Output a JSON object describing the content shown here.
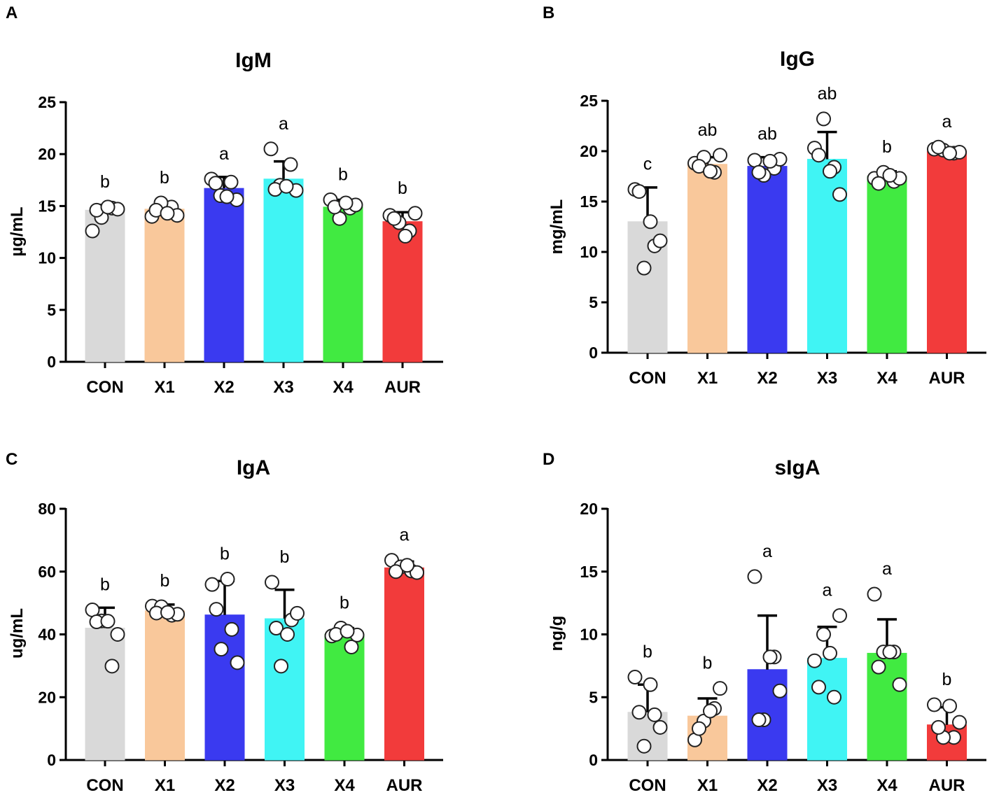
{
  "chart_data": [
    {
      "panel": "A",
      "type": "bar",
      "title": "IgM",
      "xlabel": "",
      "ylabel": "µg/mL",
      "ylim": [
        0,
        25
      ],
      "yticks": [
        "0",
        "5",
        "10",
        "15",
        "20",
        "25"
      ],
      "categories": [
        "CON",
        "X1",
        "X2",
        "X3",
        "X4",
        "AUR"
      ],
      "values": [
        14.6,
        14.7,
        16.7,
        17.6,
        14.9,
        13.5
      ],
      "error": [
        0.5,
        0.7,
        1.1,
        1.7,
        0.7,
        0.9
      ],
      "letters": [
        "b",
        "b",
        "a",
        "a",
        "b",
        "b"
      ],
      "points": [
        [
          12.6,
          14.8,
          13.9,
          14.7,
          14.6,
          14.9
        ],
        [
          14.0,
          14.9,
          15.3,
          14.1,
          14.6,
          14.3
        ],
        [
          17.6,
          17.3,
          16.0,
          15.6,
          17.2,
          15.9
        ],
        [
          20.5,
          19.0,
          17.0,
          16.5,
          16.6,
          16.9
        ],
        [
          15.6,
          14.8,
          13.8,
          15.1,
          14.9,
          15.3
        ],
        [
          14.1,
          12.6,
          13.4,
          14.3,
          13.8,
          12.1
        ]
      ],
      "bar_colors": [
        "#d9d9d9",
        "#f9c89b",
        "#3a3af0",
        "#40f4f4",
        "#41ea41",
        "#f23b3b"
      ]
    },
    {
      "panel": "B",
      "type": "bar",
      "title": "IgG",
      "xlabel": "",
      "ylabel": "mg/mL",
      "ylim": [
        0,
        25
      ],
      "yticks": [
        "0",
        "5",
        "10",
        "15",
        "20",
        "25"
      ],
      "categories": [
        "CON",
        "X1",
        "X2",
        "X3",
        "X4",
        "AUR"
      ],
      "values": [
        13.0,
        18.7,
        18.5,
        19.2,
        17.5,
        20.0
      ],
      "error": [
        3.4,
        0.7,
        0.9,
        2.7,
        0.5,
        0.3
      ],
      "letters": [
        "c",
        "ab",
        "ab",
        "ab",
        "b",
        "a"
      ],
      "points": [
        [
          16.2,
          10.6,
          8.4,
          11.1,
          16.0,
          13.0
        ],
        [
          18.8,
          17.9,
          19.4,
          19.6,
          18.5,
          18.0
        ],
        [
          19.1,
          18.3,
          17.6,
          19.2,
          17.9,
          19.0
        ],
        [
          20.3,
          18.4,
          23.2,
          15.7,
          19.6,
          18.0
        ],
        [
          17.3,
          17.0,
          17.9,
          17.3,
          16.8,
          17.6
        ],
        [
          20.2,
          19.8,
          20.1,
          19.9,
          20.4,
          19.8
        ]
      ],
      "bar_colors": [
        "#d9d9d9",
        "#f9c89b",
        "#3a3af0",
        "#40f4f4",
        "#41ea41",
        "#f23b3b"
      ]
    },
    {
      "panel": "C",
      "type": "bar",
      "title": "IgA",
      "xlabel": "",
      "ylabel": "ug/mL",
      "ylim": [
        0,
        80
      ],
      "yticks": [
        "0",
        "20",
        "40",
        "60",
        "80"
      ],
      "categories": [
        "CON",
        "X1",
        "X2",
        "X3",
        "X4",
        "AUR"
      ],
      "values": [
        42.0,
        47.5,
        46.2,
        45.0,
        40.0,
        61.2
      ],
      "error": [
        6.5,
        2.0,
        10.8,
        9.2,
        2.0,
        2.0
      ],
      "letters": [
        "b",
        "b",
        "b",
        "b",
        "b",
        "a"
      ],
      "points": [
        [
          47.8,
          29.9,
          44.3,
          40.0,
          44.0,
          44.2
        ],
        [
          49.0,
          46.1,
          48.8,
          46.4,
          46.8,
          47.0
        ],
        [
          55.9,
          41.6,
          35.3,
          31.0,
          48.0,
          57.6
        ],
        [
          56.6,
          44.6,
          29.9,
          46.7,
          42.0,
          40.0
        ],
        [
          39.5,
          36.0,
          42.0,
          39.8,
          40.0,
          41.0
        ],
        [
          63.6,
          60.2,
          61.5,
          59.7,
          60.0,
          62.0
        ]
      ],
      "bar_colors": [
        "#d9d9d9",
        "#f9c89b",
        "#3a3af0",
        "#40f4f4",
        "#41ea41",
        "#f23b3b"
      ]
    },
    {
      "panel": "D",
      "type": "bar",
      "title": "sIgA",
      "xlabel": "",
      "ylabel": "ng/g",
      "ylim": [
        0,
        20
      ],
      "yticks": [
        "0",
        "5",
        "10",
        "15",
        "20"
      ],
      "categories": [
        "CON",
        "X1",
        "X2",
        "X3",
        "X4",
        "AUR"
      ],
      "values": [
        3.8,
        3.5,
        7.2,
        8.1,
        8.5,
        2.8
      ],
      "error": [
        2.2,
        1.4,
        4.3,
        2.5,
        2.7,
        1.4
      ],
      "letters": [
        "b",
        "b",
        "a",
        "a",
        "a",
        "b"
      ],
      "points": [
        [
          6.6,
          3.6,
          1.1,
          2.6,
          3.8,
          6.0
        ],
        [
          1.6,
          4.1,
          3.1,
          5.7,
          2.5,
          3.9
        ],
        [
          14.6,
          8.2,
          3.2,
          5.5,
          3.2,
          8.2
        ],
        [
          7.9,
          5.0,
          10.0,
          11.5,
          5.8,
          8.5
        ],
        [
          13.2,
          8.6,
          8.6,
          6.0,
          7.4,
          8.6
        ],
        [
          4.4,
          1.8,
          1.8,
          3.0,
          2.6,
          4.3
        ]
      ],
      "bar_colors": [
        "#d9d9d9",
        "#f9c89b",
        "#3a3af0",
        "#40f4f4",
        "#41ea41",
        "#f23b3b"
      ]
    }
  ]
}
